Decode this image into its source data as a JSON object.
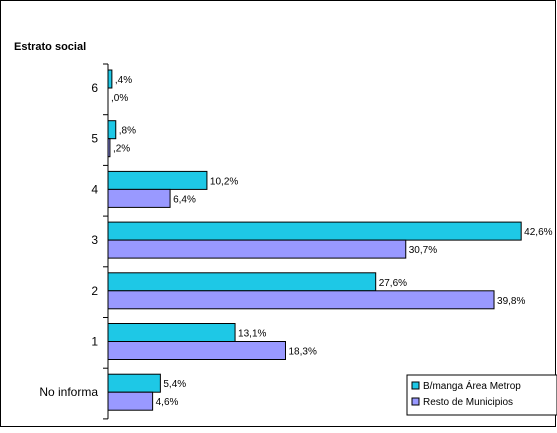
{
  "chart_data": {
    "type": "bar",
    "orientation": "horizontal",
    "title": "Estrato social",
    "categories": [
      "6",
      "5",
      "4",
      "3",
      "2",
      "1",
      "No informa"
    ],
    "series": [
      {
        "name": "B/manga Área Metrop",
        "color": "#1EC8E6",
        "values": [
          0.4,
          0.8,
          10.2,
          42.6,
          27.6,
          13.1,
          5.4
        ],
        "labels": [
          ",4%",
          ",8%",
          "10,2%",
          "42,6%",
          "27,6%",
          "13,1%",
          "5,4%"
        ]
      },
      {
        "name": "Resto de Municipios",
        "color": "#9999FF",
        "values": [
          0.0,
          0.2,
          6.4,
          30.7,
          39.8,
          18.3,
          4.6
        ],
        "labels": [
          ",0%",
          ",2%",
          "6,4%",
          "30,7%",
          "39,8%",
          "18,3%",
          "4,6%"
        ]
      }
    ],
    "xlim": [
      0,
      43.2
    ],
    "grid": false,
    "legend_position": "bottom-right"
  }
}
